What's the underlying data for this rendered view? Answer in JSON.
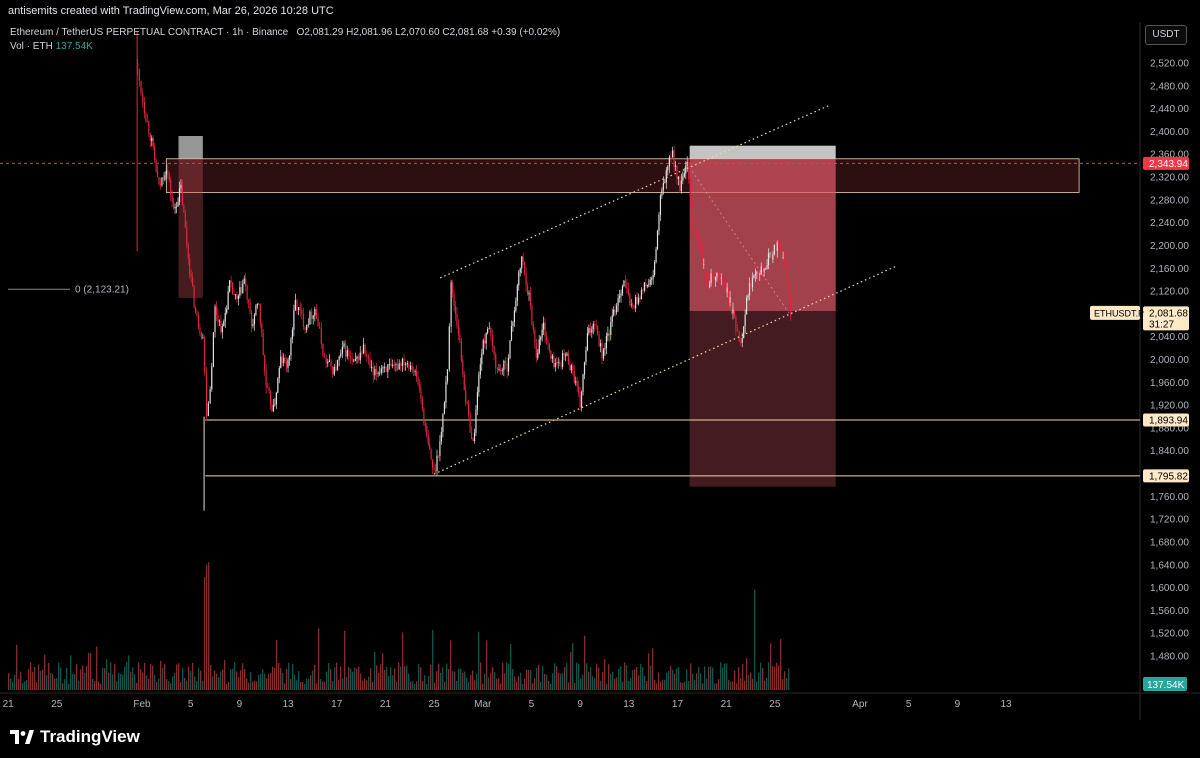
{
  "header": {
    "credit": "antisemits created with TradingView.com, Mar 26, 2026 10:28 UTC"
  },
  "legend": {
    "symbol": "Ethereum / TetherUS PERPETUAL CONTRACT · 1h · Binance",
    "open_label": "O",
    "open": "2,081.29",
    "high_label": "H",
    "high": "2,081.96",
    "low_label": "L",
    "low": "2,070.60",
    "close_label": "C",
    "close": "2,081.68",
    "change": "+0.39 (+0.02%)",
    "vol_label": "Vol · ETH",
    "vol_value": "137.54K"
  },
  "currency_button": "USDT",
  "brand": "TradingView",
  "colors": {
    "up": "#e0e0e0",
    "down": "#e0263d",
    "zone": "#e05060",
    "level_line": "#f0d8a8",
    "trend_line": "#f0e0a0",
    "last_price_bg": "#fde9c6",
    "red_label_bg": "#f23645",
    "vol_label_bg": "#26a69a"
  },
  "chart_data": {
    "type": "candlestick",
    "symbol": "ETHUSDT.P",
    "timeframe": "1h",
    "ylim": [
      1430,
      2600
    ],
    "y_ticks": [
      "2,520.00",
      "2,480.00",
      "2,440.00",
      "2,400.00",
      "2,360.00",
      "2,320.00",
      "2,280.00",
      "2,240.00",
      "2,200.00",
      "2,160.00",
      "2,120.00",
      "2,080.00",
      "2,040.00",
      "2,000.00",
      "1,960.00",
      "1,920.00",
      "1,880.00",
      "1,840.00",
      "1,800.00",
      "1,760.00",
      "1,720.00",
      "1,680.00",
      "1,640.00",
      "1,600.00",
      "1,560.00",
      "1,520.00",
      "1,480.00"
    ],
    "x_ticks": [
      "21",
      "25",
      "Feb",
      "5",
      "9",
      "13",
      "17",
      "21",
      "25",
      "Mar",
      "5",
      "9",
      "13",
      "17",
      "21",
      "25",
      "Apr",
      "5",
      "9",
      "13"
    ],
    "x_tick_days": [
      -11,
      -7,
      0,
      4,
      8,
      12,
      16,
      20,
      24,
      28,
      32,
      36,
      40,
      44,
      48,
      52,
      59,
      63,
      67,
      71
    ],
    "price_points": [
      [
        -0.5,
        2520
      ],
      [
        0.2,
        2440
      ],
      [
        0.8,
        2380
      ],
      [
        1.4,
        2300
      ],
      [
        2.0,
        2340
      ],
      [
        2.6,
        2260
      ],
      [
        3.2,
        2300
      ],
      [
        3.8,
        2180
      ],
      [
        4.4,
        2080
      ],
      [
        5.0,
        2040
      ],
      [
        5.3,
        1910
      ],
      [
        5.6,
        1950
      ],
      [
        6.0,
        2090
      ],
      [
        6.6,
        2050
      ],
      [
        7.2,
        2130
      ],
      [
        7.8,
        2100
      ],
      [
        8.4,
        2140
      ],
      [
        9.0,
        2060
      ],
      [
        9.6,
        2100
      ],
      [
        10.2,
        1950
      ],
      [
        10.8,
        1910
      ],
      [
        11.4,
        2000
      ],
      [
        12.0,
        1990
      ],
      [
        12.6,
        2100
      ],
      [
        13.4,
        2060
      ],
      [
        14.2,
        2090
      ],
      [
        15.0,
        2000
      ],
      [
        15.8,
        1980
      ],
      [
        16.6,
        2020
      ],
      [
        17.4,
        1990
      ],
      [
        18.2,
        2020
      ],
      [
        19.0,
        1970
      ],
      [
        19.8,
        1990
      ],
      [
        20.6,
        1980
      ],
      [
        21.4,
        2000
      ],
      [
        22.2,
        1990
      ],
      [
        22.8,
        1950
      ],
      [
        23.4,
        1860
      ],
      [
        24.0,
        1800
      ],
      [
        24.6,
        1870
      ],
      [
        25.1,
        1990
      ],
      [
        25.4,
        2130
      ],
      [
        26.0,
        2050
      ],
      [
        26.6,
        1930
      ],
      [
        27.2,
        1850
      ],
      [
        27.8,
        2000
      ],
      [
        28.4,
        2060
      ],
      [
        29.2,
        1980
      ],
      [
        30.0,
        1990
      ],
      [
        30.6,
        2090
      ],
      [
        31.2,
        2180
      ],
      [
        31.8,
        2110
      ],
      [
        32.4,
        2010
      ],
      [
        33.0,
        2060
      ],
      [
        33.6,
        2000
      ],
      [
        34.2,
        1990
      ],
      [
        34.8,
        2010
      ],
      [
        35.4,
        1980
      ],
      [
        36.0,
        1920
      ],
      [
        36.6,
        2040
      ],
      [
        37.2,
        2070
      ],
      [
        37.8,
        2010
      ],
      [
        38.4,
        2050
      ],
      [
        39.0,
        2100
      ],
      [
        39.6,
        2140
      ],
      [
        40.2,
        2090
      ],
      [
        40.8,
        2110
      ],
      [
        41.4,
        2130
      ],
      [
        42.0,
        2140
      ],
      [
        42.6,
        2280
      ],
      [
        43.2,
        2340
      ],
      [
        43.6,
        2360
      ],
      [
        44.2,
        2300
      ],
      [
        44.8,
        2340
      ],
      [
        45.2,
        2240
      ],
      [
        45.8,
        2200
      ],
      [
        46.4,
        2130
      ],
      [
        47.0,
        2150
      ],
      [
        47.6,
        2140
      ],
      [
        48.2,
        2110
      ],
      [
        48.8,
        2060
      ],
      [
        49.2,
        2030
      ],
      [
        49.8,
        2120
      ],
      [
        50.4,
        2160
      ],
      [
        51.0,
        2160
      ],
      [
        51.6,
        2180
      ],
      [
        52.2,
        2200
      ],
      [
        52.8,
        2170
      ],
      [
        53.3,
        2081.68
      ]
    ],
    "annotations": {
      "resistance_zone": {
        "x_from": 2,
        "x_to": 77,
        "y_from": 2293,
        "y_to": 2352
      },
      "short_position": {
        "x_from": 45,
        "x_to": 57,
        "entry": 2085,
        "stop": 2375,
        "target": 1777
      },
      "stop_zone_left": {
        "x_from": 3,
        "x_to": 5,
        "y_from": 2108,
        "y_to": 2392
      },
      "channel_upper": [
        [
          24.5,
          2143
        ],
        [
          56.5,
          2446
        ]
      ],
      "channel_lower": [
        [
          24,
          1799
        ],
        [
          62,
          2164
        ]
      ],
      "level_1893": 1893.94,
      "level_1795": 1795.82,
      "fib_zero": {
        "label": "0 (2,123.21)",
        "price": 2123.21
      }
    },
    "last_price": "2,081.68",
    "last_price_countdown": "31:27",
    "last_price_symbol": "ETHUSDT.P",
    "red_line_price": "2,343.94",
    "level_labels": [
      "1,893.94",
      "1,795.82"
    ],
    "volume_label": "137.54K"
  }
}
